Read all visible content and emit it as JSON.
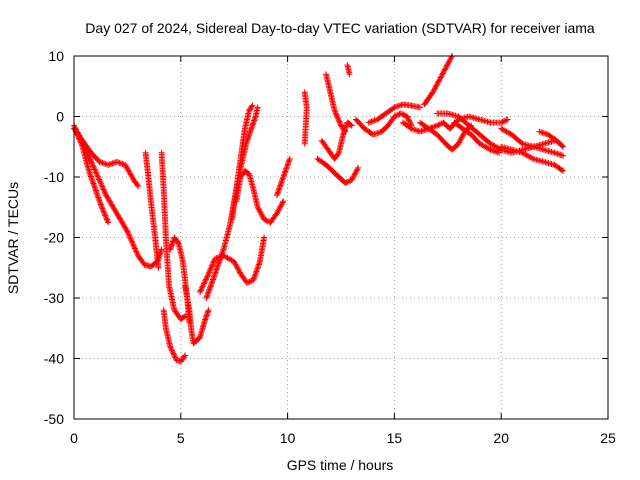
{
  "chart_data": {
    "type": "scatter",
    "title": "Day 027 of 2024, Sidereal Day-to-day VTEC variation (SDTVAR) for receiver iama",
    "xlabel": "GPS time / hours",
    "ylabel": "SDTVAR / TECUs",
    "xlim": [
      0,
      25
    ],
    "ylim": [
      -50,
      10
    ],
    "x_ticks": [
      "0",
      "5",
      "10",
      "15",
      "20",
      "25"
    ],
    "y_ticks": [
      "10",
      "0",
      "-10",
      "-20",
      "-30",
      "-40",
      "-50"
    ],
    "grid": true,
    "marker": "+",
    "color": "#ff0000",
    "series": [
      {
        "name": "s1",
        "points": [
          [
            0.0,
            -2
          ],
          [
            0.4,
            -4
          ],
          [
            0.8,
            -6
          ],
          [
            1.2,
            -7.5
          ],
          [
            1.6,
            -8
          ],
          [
            2.0,
            -7.5
          ],
          [
            2.4,
            -8
          ],
          [
            2.8,
            -10.5
          ],
          [
            3.0,
            -11.5
          ]
        ]
      },
      {
        "name": "s2",
        "points": [
          [
            0.0,
            -1.5
          ],
          [
            0.5,
            -5
          ],
          [
            1.0,
            -9
          ],
          [
            1.5,
            -13
          ],
          [
            2.0,
            -16
          ],
          [
            2.5,
            -19
          ],
          [
            3.0,
            -23
          ],
          [
            3.3,
            -24.5
          ],
          [
            3.6,
            -24.8
          ],
          [
            3.9,
            -24
          ],
          [
            4.1,
            -22
          ]
        ]
      },
      {
        "name": "s3",
        "points": [
          [
            0.1,
            -2.5
          ],
          [
            0.4,
            -5
          ],
          [
            0.7,
            -9
          ],
          [
            1.0,
            -12
          ],
          [
            1.3,
            -15
          ],
          [
            1.6,
            -17.5
          ]
        ]
      },
      {
        "name": "s4",
        "points": [
          [
            3.35,
            -6
          ],
          [
            3.45,
            -9
          ],
          [
            3.6,
            -14
          ],
          [
            3.8,
            -20
          ],
          [
            3.95,
            -25
          ]
        ]
      },
      {
        "name": "s5",
        "points": [
          [
            4.1,
            -6
          ],
          [
            4.2,
            -12
          ],
          [
            4.3,
            -20
          ],
          [
            4.45,
            -28
          ],
          [
            4.7,
            -32
          ],
          [
            5.0,
            -33.5
          ],
          [
            5.2,
            -33
          ]
        ]
      },
      {
        "name": "s6",
        "points": [
          [
            4.2,
            -32
          ],
          [
            4.3,
            -35
          ],
          [
            4.5,
            -38
          ],
          [
            4.8,
            -40.3
          ],
          [
            5.0,
            -40.5
          ],
          [
            5.2,
            -39.5
          ]
        ]
      },
      {
        "name": "s7",
        "points": [
          [
            4.5,
            -22
          ],
          [
            4.7,
            -20
          ],
          [
            4.9,
            -21
          ],
          [
            5.1,
            -24
          ],
          [
            5.3,
            -30
          ],
          [
            5.4,
            -34
          ]
        ]
      },
      {
        "name": "s8",
        "points": [
          [
            5.2,
            -28
          ],
          [
            5.4,
            -32
          ],
          [
            5.5,
            -35.5
          ],
          [
            5.6,
            -37.5
          ],
          [
            5.9,
            -36.5
          ],
          [
            6.1,
            -34
          ],
          [
            6.3,
            -32
          ]
        ]
      },
      {
        "name": "s9",
        "points": [
          [
            5.9,
            -29
          ],
          [
            6.3,
            -26
          ],
          [
            6.6,
            -23.5
          ],
          [
            7.0,
            -23
          ],
          [
            7.5,
            -24
          ],
          [
            7.8,
            -26
          ],
          [
            8.1,
            -27.5
          ],
          [
            8.4,
            -27
          ],
          [
            8.7,
            -24
          ],
          [
            8.9,
            -20
          ]
        ]
      },
      {
        "name": "s10",
        "points": [
          [
            6.2,
            -30
          ],
          [
            6.6,
            -26
          ],
          [
            7.0,
            -22
          ],
          [
            7.3,
            -18
          ],
          [
            7.5,
            -14
          ],
          [
            7.7,
            -10
          ],
          [
            7.9,
            -7
          ],
          [
            8.1,
            -4
          ],
          [
            8.3,
            -2
          ],
          [
            8.5,
            0
          ],
          [
            8.6,
            1.5
          ]
        ]
      },
      {
        "name": "s11",
        "points": [
          [
            7.4,
            -17
          ],
          [
            7.6,
            -12
          ],
          [
            7.8,
            -7
          ],
          [
            8.0,
            -2
          ],
          [
            8.2,
            1
          ],
          [
            8.35,
            1.8
          ]
        ]
      },
      {
        "name": "s12",
        "points": [
          [
            7.6,
            -14
          ],
          [
            7.8,
            -10
          ],
          [
            8.0,
            -9
          ],
          [
            8.2,
            -9.5
          ],
          [
            8.4,
            -12
          ],
          [
            8.6,
            -15
          ],
          [
            8.9,
            -17
          ],
          [
            9.2,
            -17.5
          ],
          [
            9.5,
            -16
          ],
          [
            9.8,
            -14
          ]
        ]
      },
      {
        "name": "s13",
        "points": [
          [
            9.5,
            -13
          ],
          [
            9.8,
            -10
          ],
          [
            10.1,
            -7
          ]
        ]
      },
      {
        "name": "s14",
        "points": [
          [
            10.8,
            4
          ],
          [
            10.9,
            1.5
          ],
          [
            10.8,
            -4.5
          ]
        ]
      },
      {
        "name": "s15",
        "points": [
          [
            11.4,
            -7
          ],
          [
            11.8,
            -8
          ],
          [
            12.1,
            -9
          ],
          [
            12.4,
            -10
          ],
          [
            12.7,
            -11
          ],
          [
            13.0,
            -10.5
          ],
          [
            13.3,
            -8.5
          ]
        ]
      },
      {
        "name": "s16",
        "points": [
          [
            11.6,
            -4
          ],
          [
            11.9,
            -5.5
          ],
          [
            12.2,
            -7
          ],
          [
            12.4,
            -6
          ],
          [
            12.6,
            -3
          ],
          [
            12.8,
            -1
          ],
          [
            13.0,
            -1.5
          ]
        ]
      },
      {
        "name": "s17",
        "points": [
          [
            11.8,
            7
          ],
          [
            12.0,
            4
          ],
          [
            12.2,
            1
          ],
          [
            12.5,
            -1.5
          ],
          [
            12.7,
            -2.5
          ]
        ]
      },
      {
        "name": "s18",
        "points": [
          [
            12.8,
            8.5
          ],
          [
            12.9,
            7
          ]
        ]
      },
      {
        "name": "s19",
        "points": [
          [
            13.2,
            -0.5
          ],
          [
            13.6,
            -2
          ],
          [
            14.0,
            -3
          ],
          [
            14.4,
            -2.5
          ],
          [
            14.7,
            -1.5
          ],
          [
            15.0,
            0
          ],
          [
            15.3,
            0.5
          ],
          [
            15.6,
            0
          ],
          [
            15.8,
            -1.5
          ]
        ]
      },
      {
        "name": "s20",
        "points": [
          [
            13.8,
            -1
          ],
          [
            14.2,
            -0.5
          ],
          [
            14.6,
            0.5
          ],
          [
            15.0,
            1.5
          ],
          [
            15.4,
            2
          ],
          [
            15.8,
            1.8
          ],
          [
            16.2,
            1.5
          ]
        ]
      },
      {
        "name": "s21",
        "points": [
          [
            15.4,
            -1
          ],
          [
            15.8,
            -2
          ],
          [
            16.2,
            -2.5
          ],
          [
            16.6,
            -2
          ],
          [
            17.0,
            -1.5
          ],
          [
            17.3,
            -1
          ],
          [
            17.6,
            -2
          ]
        ]
      },
      {
        "name": "s22",
        "points": [
          [
            16.4,
            2
          ],
          [
            16.8,
            4
          ],
          [
            17.1,
            6
          ],
          [
            17.4,
            8
          ],
          [
            17.7,
            10
          ]
        ]
      },
      {
        "name": "s23",
        "points": [
          [
            16.2,
            -1
          ],
          [
            16.6,
            -2
          ],
          [
            17.0,
            -3
          ],
          [
            17.4,
            -4.5
          ],
          [
            17.7,
            -5.5
          ],
          [
            18.0,
            -4.5
          ],
          [
            18.3,
            -2.5
          ],
          [
            18.6,
            -1.5
          ]
        ]
      },
      {
        "name": "s24",
        "points": [
          [
            17.0,
            0.5
          ],
          [
            17.5,
            0.5
          ],
          [
            18.0,
            0
          ],
          [
            18.5,
            -1.5
          ],
          [
            19.0,
            -3
          ],
          [
            19.5,
            -4.5
          ],
          [
            20.0,
            -5.5
          ],
          [
            20.5,
            -6
          ],
          [
            21.0,
            -5.5
          ],
          [
            21.5,
            -5
          ],
          [
            22.0,
            -5.5
          ],
          [
            22.5,
            -6
          ],
          [
            22.9,
            -6.5
          ]
        ]
      },
      {
        "name": "s25",
        "points": [
          [
            17.8,
            -1
          ],
          [
            18.2,
            -2
          ],
          [
            18.6,
            -3
          ],
          [
            19.0,
            -4.5
          ],
          [
            19.5,
            -5.5
          ],
          [
            19.9,
            -6
          ]
        ]
      },
      {
        "name": "s26",
        "points": [
          [
            17.6,
            -2
          ],
          [
            18.0,
            -0.5
          ],
          [
            18.5,
            0
          ],
          [
            19.0,
            -0.5
          ],
          [
            19.5,
            -1
          ],
          [
            20.0,
            -1
          ],
          [
            20.3,
            -0.5
          ]
        ]
      },
      {
        "name": "s27",
        "points": [
          [
            20.0,
            -5
          ],
          [
            20.5,
            -5.5
          ],
          [
            21.0,
            -6
          ],
          [
            21.5,
            -7
          ],
          [
            22.0,
            -7.5
          ],
          [
            22.5,
            -8
          ],
          [
            22.9,
            -9
          ]
        ]
      },
      {
        "name": "s28",
        "points": [
          [
            20.0,
            -2
          ],
          [
            20.5,
            -3
          ],
          [
            21.0,
            -4.5
          ],
          [
            21.5,
            -5
          ],
          [
            22.0,
            -4.5
          ],
          [
            22.5,
            -4
          ]
        ]
      },
      {
        "name": "s29",
        "points": [
          [
            21.8,
            -2.5
          ],
          [
            22.2,
            -3
          ],
          [
            22.6,
            -4
          ],
          [
            22.9,
            -5
          ]
        ]
      }
    ]
  }
}
